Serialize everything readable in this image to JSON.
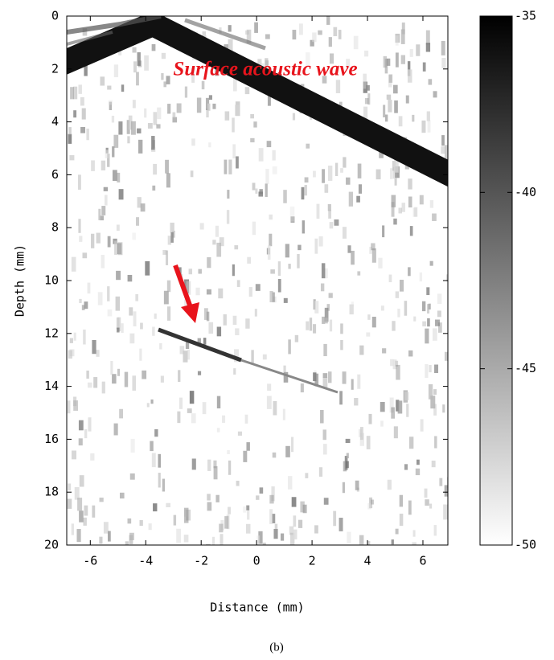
{
  "chart_data": {
    "type": "heatmap",
    "annotation": "Surface acoustic wave",
    "xlabel": "Distance (mm)",
    "ylabel": "Depth (mm)",
    "caption": "(b)",
    "xlim": [
      -6.85,
      6.9
    ],
    "xticks": [
      -6,
      -4,
      -2,
      0,
      2,
      4,
      6
    ],
    "ylim": [
      0,
      20
    ],
    "yticks": [
      0,
      2,
      4,
      6,
      8,
      10,
      12,
      14,
      16,
      18,
      20
    ],
    "y_reversed": true,
    "colorbar": {
      "lim": [
        -50,
        -35
      ],
      "ticks": [
        -35,
        -40,
        -45,
        -50
      ],
      "colors": [
        "#ffffff",
        "#000000"
      ]
    }
  }
}
